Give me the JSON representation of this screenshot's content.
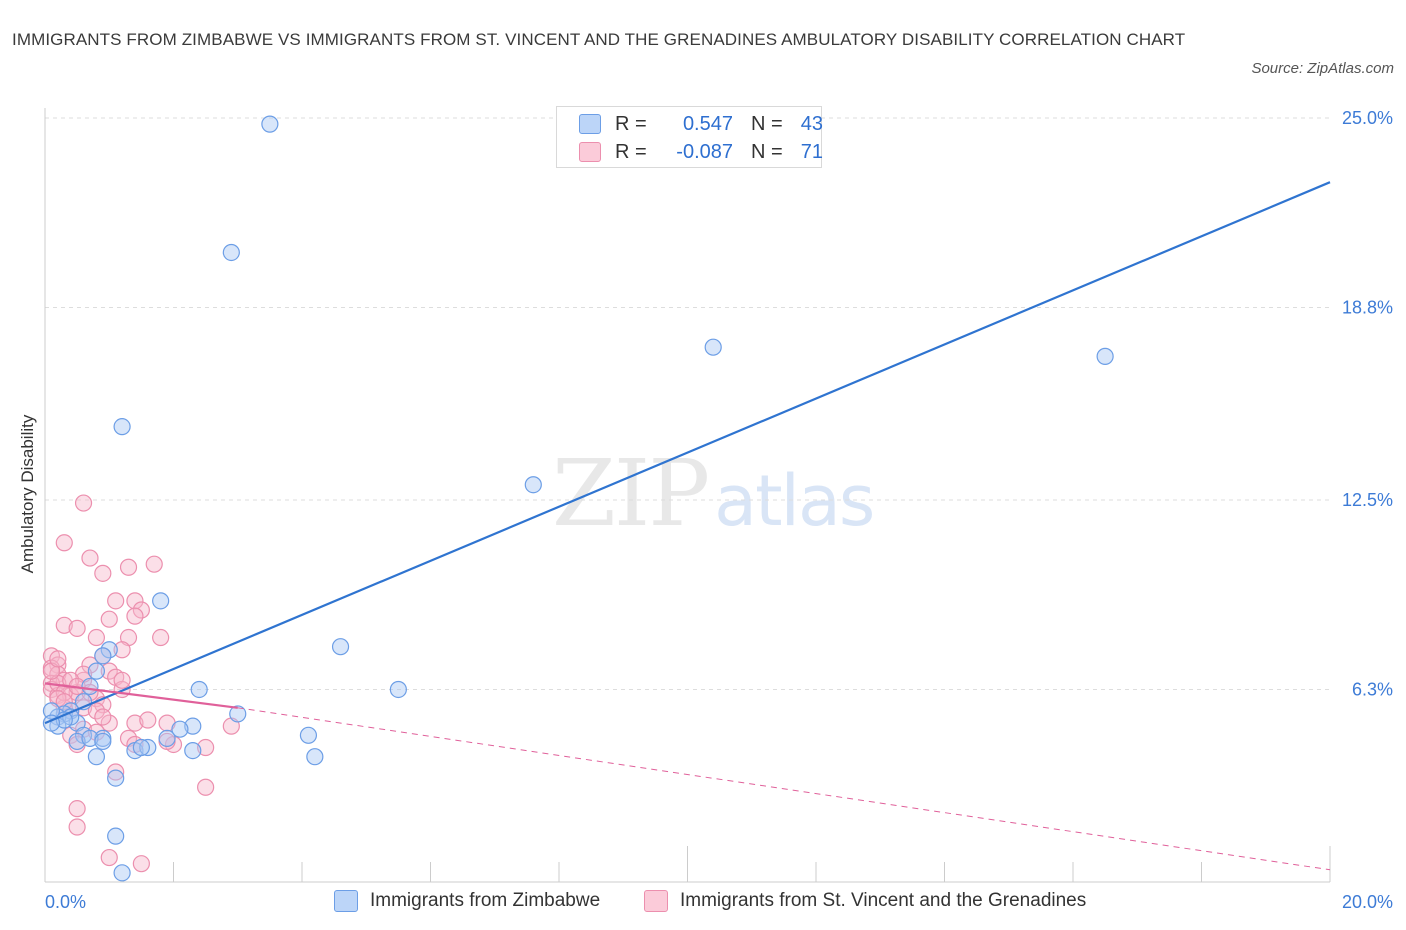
{
  "title": "IMMIGRANTS FROM ZIMBABWE VS IMMIGRANTS FROM ST. VINCENT AND THE GRENADINES AMBULATORY DISABILITY CORRELATION CHART",
  "source": "Source: ZipAtlas.com",
  "watermark": {
    "zip": "ZIP",
    "atlas": "atlas"
  },
  "legend": {
    "rows": [
      {
        "r_label": "R =",
        "r_value": "0.547",
        "n_label": "N =",
        "n_value": "43"
      },
      {
        "r_label": "R =",
        "r_value": "-0.087",
        "n_label": "N =",
        "n_value": "71"
      }
    ]
  },
  "colors": {
    "zimbabwe_fill": "#a9c8f5",
    "zimbabwe_stroke": "#6c9ee6",
    "zimbabwe_line": "#2f74d0",
    "svg_fill": "#f7b9cc",
    "svg_stroke": "#ec8fae",
    "svg_line": "#e0609a",
    "tick_label": "#3d7bd6",
    "grid": "#dddddd"
  },
  "chart_data": {
    "type": "scatter",
    "title": "IMMIGRANTS FROM ZIMBABWE VS IMMIGRANTS FROM ST. VINCENT AND THE GRENADINES AMBULATORY DISABILITY CORRELATION CHART",
    "xlabel": "",
    "ylabel": "Ambulatory Disability",
    "xlim": [
      0,
      20
    ],
    "ylim": [
      0,
      25
    ],
    "x_tick_labels": [
      "0.0%",
      "20.0%"
    ],
    "y_ticks": [
      6.3,
      12.5,
      18.8,
      25.0
    ],
    "y_tick_labels": [
      "6.3%",
      "12.5%",
      "18.8%",
      "25.0%"
    ],
    "grid": true,
    "legend_position": "top-center",
    "series": [
      {
        "name": "Immigrants from Zimbabwe",
        "R": 0.547,
        "N": 43,
        "trend": {
          "x": [
            0,
            20
          ],
          "y": [
            5.2,
            22.9
          ],
          "style": "solid"
        },
        "points": [
          [
            3.5,
            24.8
          ],
          [
            2.9,
            20.6
          ],
          [
            1.2,
            14.9
          ],
          [
            10.4,
            17.5
          ],
          [
            16.5,
            17.2
          ],
          [
            7.6,
            13.0
          ],
          [
            1.8,
            9.2
          ],
          [
            4.6,
            7.7
          ],
          [
            5.5,
            6.3
          ],
          [
            2.4,
            6.3
          ],
          [
            1.0,
            7.6
          ],
          [
            0.9,
            7.4
          ],
          [
            0.8,
            6.9
          ],
          [
            0.7,
            6.4
          ],
          [
            0.6,
            5.9
          ],
          [
            0.4,
            5.6
          ],
          [
            0.3,
            5.5
          ],
          [
            0.2,
            5.4
          ],
          [
            0.1,
            5.6
          ],
          [
            0.2,
            5.1
          ],
          [
            0.5,
            5.2
          ],
          [
            0.6,
            4.8
          ],
          [
            0.5,
            4.6
          ],
          [
            0.9,
            4.7
          ],
          [
            0.8,
            4.1
          ],
          [
            1.4,
            4.3
          ],
          [
            1.6,
            4.4
          ],
          [
            1.9,
            4.7
          ],
          [
            2.3,
            5.1
          ],
          [
            2.1,
            5.0
          ],
          [
            2.3,
            4.3
          ],
          [
            3.0,
            5.5
          ],
          [
            4.1,
            4.8
          ],
          [
            4.2,
            4.1
          ],
          [
            1.1,
            3.4
          ],
          [
            1.1,
            1.5
          ],
          [
            1.2,
            0.3
          ],
          [
            0.4,
            5.4
          ],
          [
            0.7,
            4.7
          ],
          [
            1.5,
            4.4
          ],
          [
            0.3,
            5.3
          ],
          [
            0.1,
            5.2
          ],
          [
            0.9,
            4.6
          ]
        ]
      },
      {
        "name": "Immigrants from St. Vincent and the Grenadines",
        "R": -0.087,
        "N": 71,
        "trend": {
          "x": [
            0,
            3.0
          ],
          "y": [
            6.5,
            5.7
          ],
          "style": "solid",
          "dashed_extension": {
            "x": [
              3.0,
              20
            ],
            "y": [
              5.7,
              0.4
            ]
          }
        },
        "points": [
          [
            0.6,
            12.4
          ],
          [
            0.3,
            11.1
          ],
          [
            0.7,
            10.6
          ],
          [
            1.3,
            10.3
          ],
          [
            1.7,
            10.4
          ],
          [
            0.9,
            10.1
          ],
          [
            1.4,
            9.2
          ],
          [
            1.1,
            9.2
          ],
          [
            1.5,
            8.9
          ],
          [
            1.4,
            8.7
          ],
          [
            1.0,
            8.6
          ],
          [
            0.3,
            8.4
          ],
          [
            0.5,
            8.3
          ],
          [
            1.3,
            8.0
          ],
          [
            0.8,
            8.0
          ],
          [
            0.1,
            7.4
          ],
          [
            0.2,
            7.1
          ],
          [
            0.1,
            7.0
          ],
          [
            0.2,
            6.8
          ],
          [
            0.3,
            6.6
          ],
          [
            0.1,
            6.5
          ],
          [
            0.1,
            6.3
          ],
          [
            0.2,
            6.1
          ],
          [
            0.4,
            6.1
          ],
          [
            0.5,
            6.2
          ],
          [
            0.6,
            6.6
          ],
          [
            0.7,
            7.1
          ],
          [
            0.9,
            7.4
          ],
          [
            1.2,
            7.6
          ],
          [
            1.0,
            6.9
          ],
          [
            1.1,
            6.7
          ],
          [
            1.2,
            6.3
          ],
          [
            0.8,
            6.0
          ],
          [
            0.9,
            5.8
          ],
          [
            0.6,
            5.7
          ],
          [
            0.4,
            5.6
          ],
          [
            0.3,
            5.7
          ],
          [
            0.8,
            5.6
          ],
          [
            1.0,
            5.2
          ],
          [
            0.6,
            5.0
          ],
          [
            0.4,
            4.8
          ],
          [
            0.5,
            4.5
          ],
          [
            0.8,
            4.9
          ],
          [
            1.3,
            4.7
          ],
          [
            1.4,
            5.2
          ],
          [
            1.6,
            5.3
          ],
          [
            1.9,
            5.2
          ],
          [
            2.0,
            4.5
          ],
          [
            2.9,
            5.1
          ],
          [
            2.5,
            4.4
          ],
          [
            0.5,
            2.4
          ],
          [
            0.5,
            1.8
          ],
          [
            1.1,
            3.6
          ],
          [
            1.0,
            0.8
          ],
          [
            1.5,
            0.6
          ],
          [
            2.5,
            3.1
          ],
          [
            1.4,
            4.5
          ],
          [
            1.9,
            4.6
          ],
          [
            0.2,
            6.5
          ],
          [
            0.3,
            6.2
          ],
          [
            0.1,
            6.9
          ],
          [
            0.2,
            7.3
          ],
          [
            0.6,
            6.8
          ],
          [
            0.7,
            6.2
          ],
          [
            0.9,
            5.4
          ],
          [
            1.2,
            6.6
          ],
          [
            1.8,
            8.0
          ],
          [
            0.4,
            6.6
          ],
          [
            0.2,
            6.0
          ],
          [
            0.3,
            5.9
          ],
          [
            0.5,
            6.4
          ]
        ]
      }
    ]
  },
  "bottom_legend": [
    {
      "label": "Immigrants from Zimbabwe"
    },
    {
      "label": "Immigrants from St. Vincent and the Grenadines"
    }
  ]
}
